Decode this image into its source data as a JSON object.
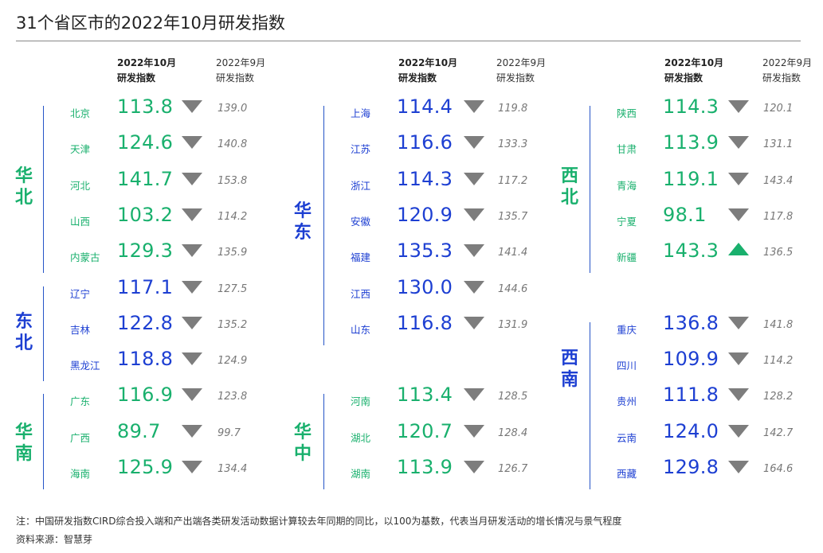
{
  "title": "31个省区市的2022年10月研发指数",
  "headers": {
    "cur_line1": "2022年10月",
    "cur_line2": "研发指数",
    "prev_line1": "2022年9月",
    "prev_line2": "研发指数"
  },
  "colors": {
    "blue": "#1d3fd2",
    "green": "#19b06d",
    "line": "#2554c7",
    "arrow_down": "#7d7d7d"
  },
  "regions": [
    {
      "name": "华北",
      "color": "green",
      "rows": [
        {
          "province": "北京",
          "value": "113.8",
          "trend": "down",
          "prev": "139.0"
        },
        {
          "province": "天津",
          "value": "124.6",
          "trend": "down",
          "prev": "140.8"
        },
        {
          "province": "河北",
          "value": "141.7",
          "trend": "down",
          "prev": "153.8"
        },
        {
          "province": "山西",
          "value": "103.2",
          "trend": "down",
          "prev": "114.2"
        },
        {
          "province": "内蒙古",
          "value": "129.3",
          "trend": "down",
          "prev": "135.9"
        }
      ]
    },
    {
      "name": "东北",
      "color": "blue",
      "rows": [
        {
          "province": "辽宁",
          "value": "117.1",
          "trend": "down",
          "prev": "127.5"
        },
        {
          "province": "吉林",
          "value": "122.8",
          "trend": "down",
          "prev": "135.2"
        },
        {
          "province": "黑龙江",
          "value": "118.8",
          "trend": "down",
          "prev": "124.9"
        }
      ]
    },
    {
      "name": "华南",
      "color": "green",
      "rows": [
        {
          "province": "广东",
          "value": "116.9",
          "trend": "down",
          "prev": "123.8"
        },
        {
          "province": "广西",
          "value": "89.7",
          "trend": "down",
          "prev": "99.7"
        },
        {
          "province": "海南",
          "value": "125.9",
          "trend": "down",
          "prev": "134.4"
        }
      ]
    },
    {
      "name": "华东",
      "color": "blue",
      "rows": [
        {
          "province": "上海",
          "value": "114.4",
          "trend": "down",
          "prev": "119.8"
        },
        {
          "province": "江苏",
          "value": "116.6",
          "trend": "down",
          "prev": "133.3"
        },
        {
          "province": "浙江",
          "value": "114.3",
          "trend": "down",
          "prev": "117.2"
        },
        {
          "province": "安徽",
          "value": "120.9",
          "trend": "down",
          "prev": "135.7"
        },
        {
          "province": "福建",
          "value": "135.3",
          "trend": "down",
          "prev": "141.4"
        },
        {
          "province": "江西",
          "value": "130.0",
          "trend": "down",
          "prev": "144.6"
        },
        {
          "province": "山东",
          "value": "116.8",
          "trend": "down",
          "prev": "131.9"
        }
      ]
    },
    {
      "name": "华中",
      "color": "green",
      "rows": [
        {
          "province": "河南",
          "value": "113.4",
          "trend": "down",
          "prev": "128.5"
        },
        {
          "province": "湖北",
          "value": "120.7",
          "trend": "down",
          "prev": "128.4"
        },
        {
          "province": "湖南",
          "value": "113.9",
          "trend": "down",
          "prev": "126.7"
        }
      ]
    },
    {
      "name": "西北",
      "color": "green",
      "rows": [
        {
          "province": "陕西",
          "value": "114.3",
          "trend": "down",
          "prev": "120.1"
        },
        {
          "province": "甘肃",
          "value": "113.9",
          "trend": "down",
          "prev": "131.1"
        },
        {
          "province": "青海",
          "value": "119.1",
          "trend": "down",
          "prev": "143.4"
        },
        {
          "province": "宁夏",
          "value": "98.1",
          "trend": "down",
          "prev": "117.8"
        },
        {
          "province": "新疆",
          "value": "143.3",
          "trend": "up",
          "prev": "136.5"
        }
      ]
    },
    {
      "name": "西南",
      "color": "blue",
      "rows": [
        {
          "province": "重庆",
          "value": "136.8",
          "trend": "down",
          "prev": "141.8"
        },
        {
          "province": "四川",
          "value": "109.9",
          "trend": "down",
          "prev": "114.2"
        },
        {
          "province": "贵州",
          "value": "111.8",
          "trend": "down",
          "prev": "128.2"
        },
        {
          "province": "云南",
          "value": "124.0",
          "trend": "down",
          "prev": "142.7"
        },
        {
          "province": "西藏",
          "value": "129.8",
          "trend": "down",
          "prev": "164.6"
        }
      ]
    }
  ],
  "footnote": "注：中国研发指数CIRD综合投入端和产出端各类研发活动数据计算较去年同期的同比，以100为基数，代表当月研发活动的增长情况与景气程度",
  "source": "资料来源：智慧芽"
}
